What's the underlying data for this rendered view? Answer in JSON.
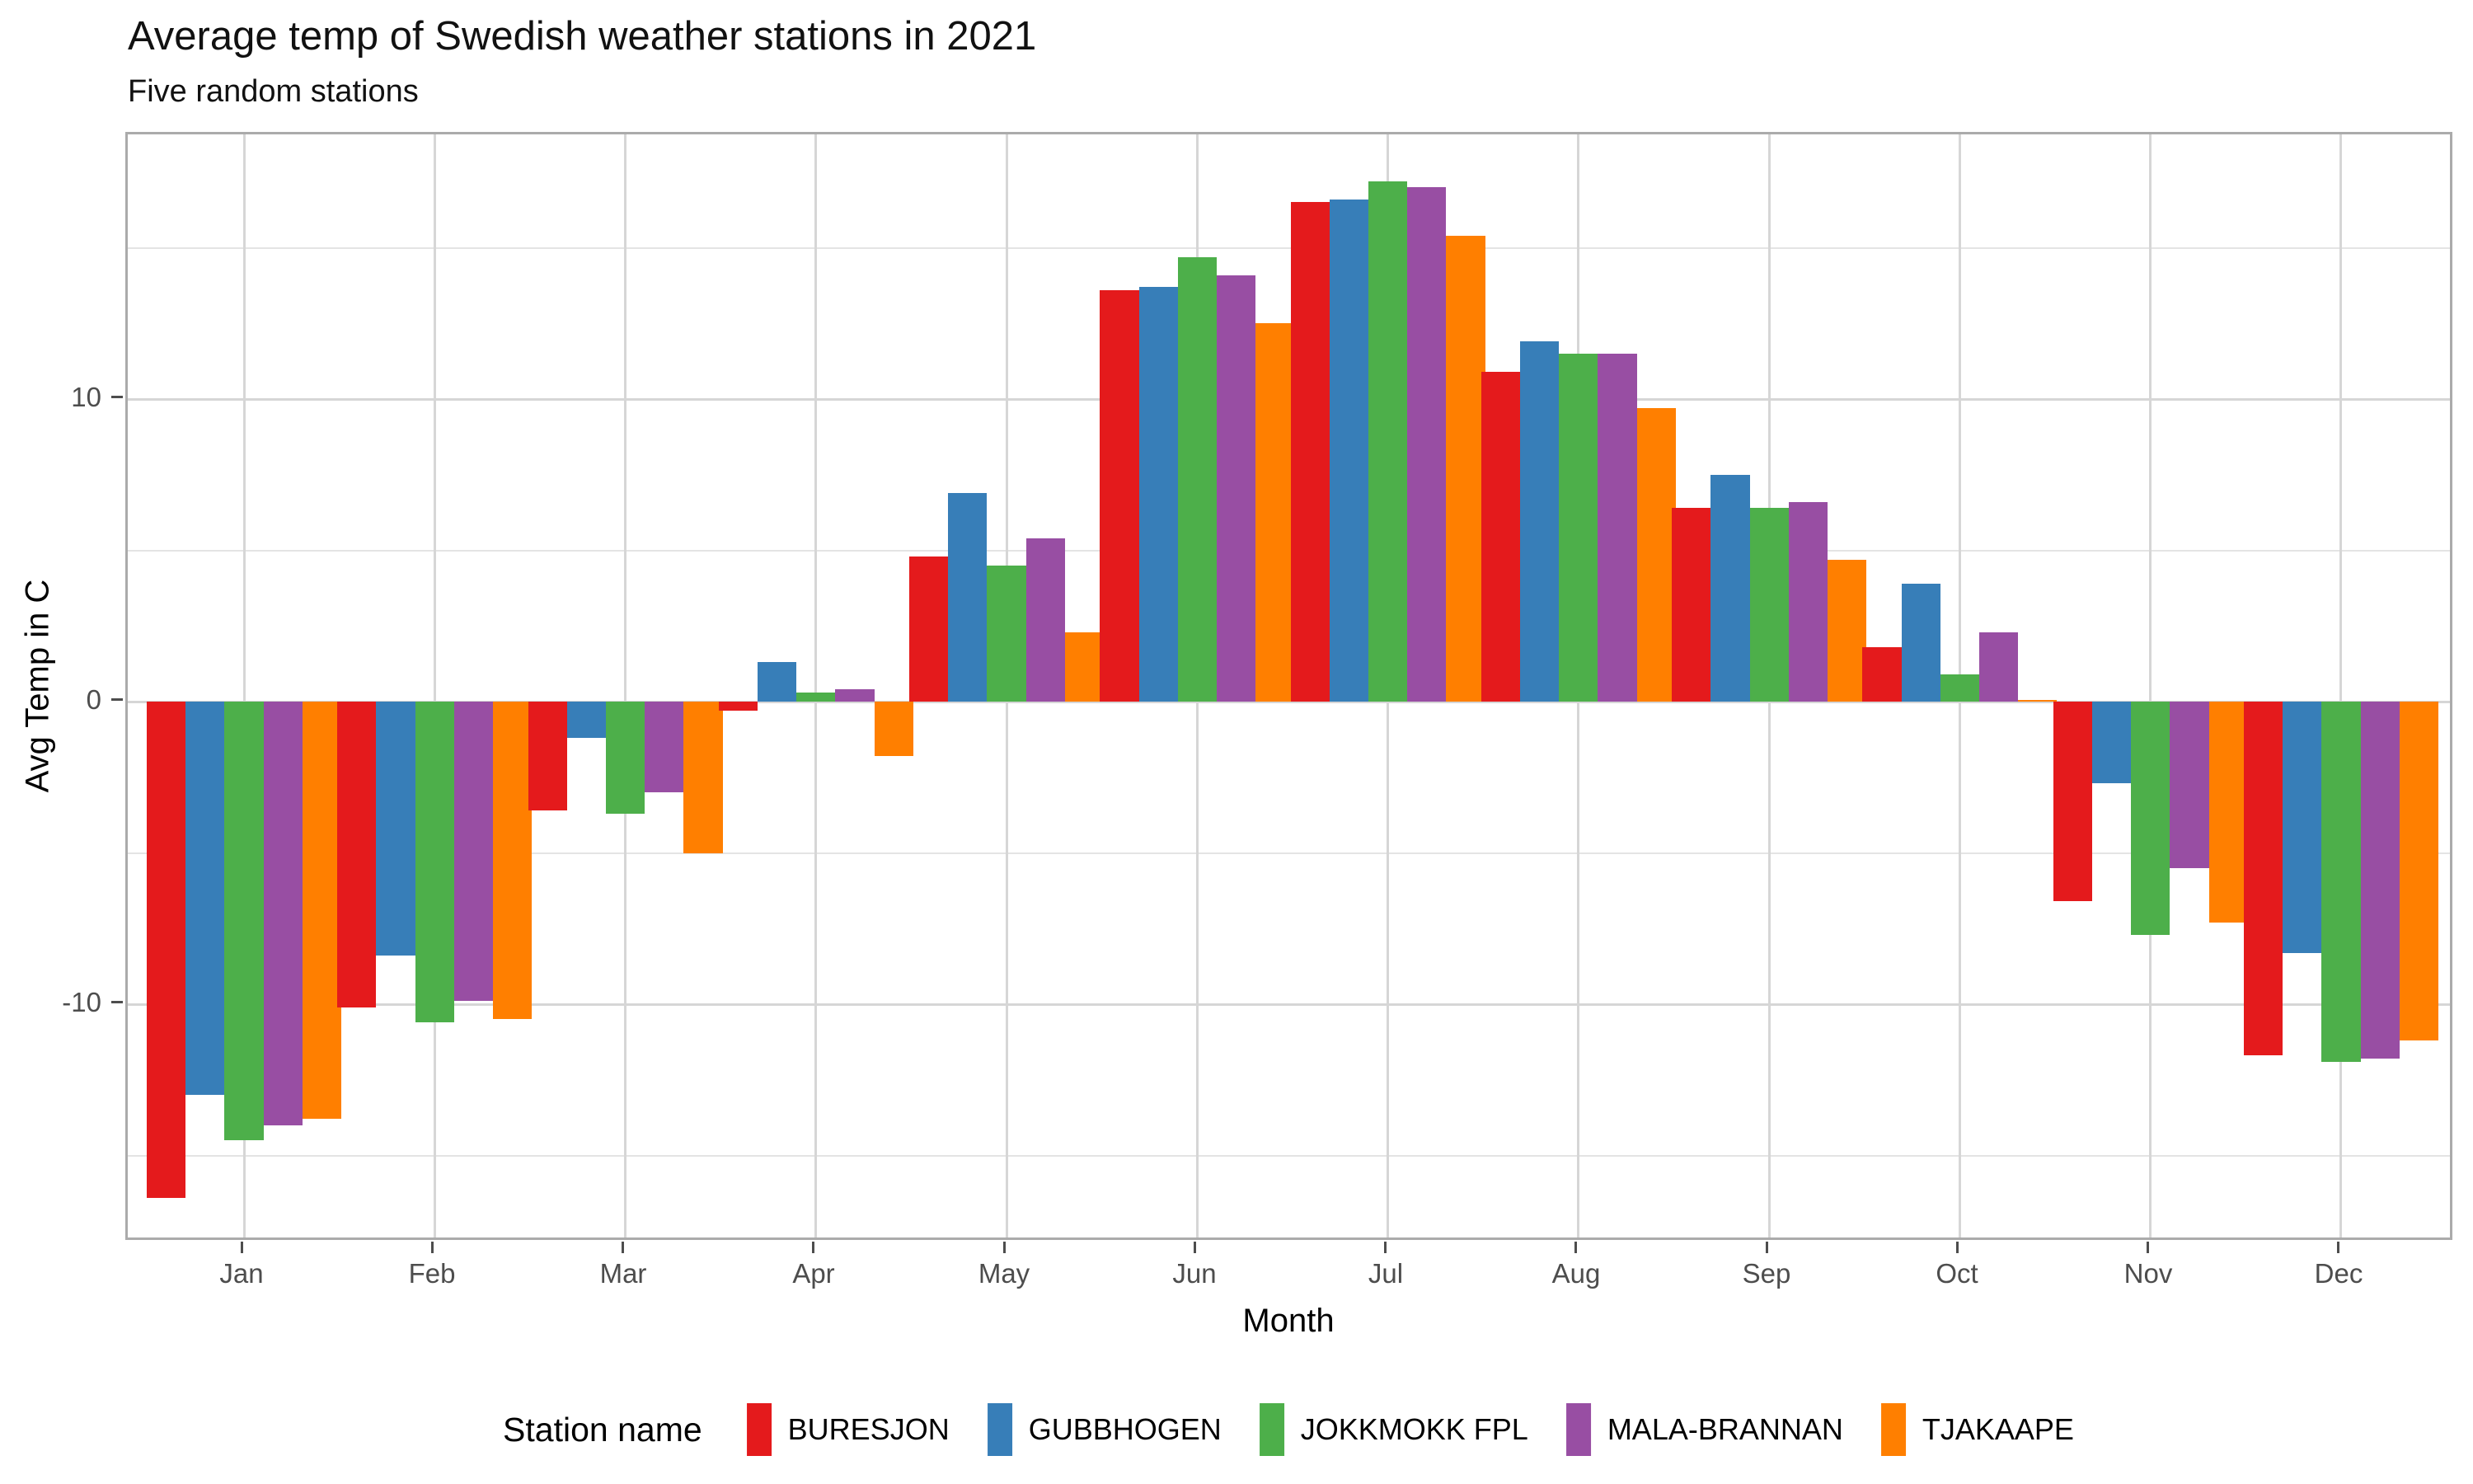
{
  "title": "Average temp of Swedish weather stations in 2021",
  "subtitle": "Five random stations",
  "axes": {
    "x_title": "Month",
    "y_title": "Avg Temp in C",
    "y_tick_labels": [
      "10",
      "0",
      "-10"
    ]
  },
  "legend": {
    "title": "Station name",
    "entries": [
      "BURESJON",
      "GUBBHOGEN",
      "JOKKMOKK FPL",
      "MALA-BRANNAN",
      "TJAKAAPE"
    ]
  },
  "chart_data": {
    "type": "bar",
    "title": "Average temp of Swedish weather stations in 2021",
    "subtitle": "Five random stations",
    "xlabel": "Month",
    "ylabel": "Avg Temp in C",
    "categories": [
      "Jan",
      "Feb",
      "Mar",
      "Apr",
      "May",
      "Jun",
      "Jul",
      "Aug",
      "Sep",
      "Oct",
      "Nov",
      "Dec"
    ],
    "series": [
      {
        "name": "BURESJON",
        "color": "#E41A1C",
        "values": [
          -16.4,
          -10.1,
          -3.6,
          -0.3,
          4.8,
          13.6,
          16.5,
          10.9,
          6.4,
          1.8,
          -6.6,
          -11.7
        ]
      },
      {
        "name": "GUBBHOGEN",
        "color": "#377EB8",
        "values": [
          -13.0,
          -8.4,
          -1.2,
          1.3,
          6.9,
          13.7,
          16.6,
          11.9,
          7.5,
          3.9,
          -2.7,
          -8.3
        ]
      },
      {
        "name": "JOKKMOKK FPL",
        "color": "#4DAF4A",
        "values": [
          -14.5,
          -10.6,
          -3.7,
          0.3,
          4.5,
          14.7,
          17.2,
          11.5,
          6.4,
          0.9,
          -7.7,
          -11.9
        ]
      },
      {
        "name": "MALA-BRANNAN",
        "color": "#984EA3",
        "values": [
          -14.0,
          -9.9,
          -3.0,
          0.4,
          5.4,
          14.1,
          17.0,
          11.5,
          6.6,
          2.3,
          -5.5,
          -11.8
        ]
      },
      {
        "name": "TJAKAAPE",
        "color": "#FF7F00",
        "values": [
          -13.8,
          -10.5,
          -5.0,
          -1.8,
          2.3,
          12.5,
          15.4,
          9.7,
          4.7,
          0.05,
          -7.3,
          -11.2
        ]
      }
    ],
    "ylim": [
      -17.9,
      18.8
    ],
    "y_major_ticks": [
      -10,
      0,
      10
    ],
    "y_minor_gridlines": [
      -15,
      -5,
      5,
      15
    ],
    "grid": true,
    "legend_position": "bottom",
    "legend_title": "Station name"
  }
}
